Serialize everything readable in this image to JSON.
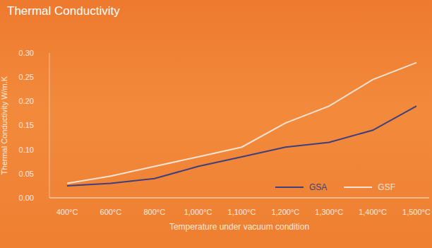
{
  "chart_data": {
    "type": "line",
    "title": "Thermal Conductivity",
    "x_label": "Temperature under vacuum condition",
    "y_label": "Thermal Conductivity W/m.K",
    "categories": [
      "400°C",
      "600°C",
      "800°C",
      "1,000°C",
      "1,100°C",
      "1,200°C",
      "1,300°C",
      "1,400°C",
      "1,500°C"
    ],
    "series": [
      {
        "name": "GSA",
        "color": "#3d3f7e",
        "values": [
          0.025,
          0.03,
          0.04,
          0.065,
          0.085,
          0.105,
          0.115,
          0.14,
          0.19
        ]
      },
      {
        "name": "GSF",
        "color": "#f3e2d3",
        "values": [
          0.03,
          0.045,
          0.065,
          0.085,
          0.105,
          0.155,
          0.19,
          0.245,
          0.28
        ]
      }
    ],
    "ylim": [
      0,
      0.3
    ],
    "yticks": [
      {
        "value": 0,
        "label": "0.00"
      },
      {
        "value": 0.05,
        "label": "0.05"
      },
      {
        "value": 0.1,
        "label": "0.10"
      },
      {
        "value": 0.15,
        "label": "0.15"
      },
      {
        "value": 0.2,
        "label": "0.20"
      },
      {
        "value": 0.25,
        "label": "0.25"
      },
      {
        "value": 0.3,
        "label": "0.30"
      }
    ],
    "grid": false,
    "legend": "lower right"
  }
}
